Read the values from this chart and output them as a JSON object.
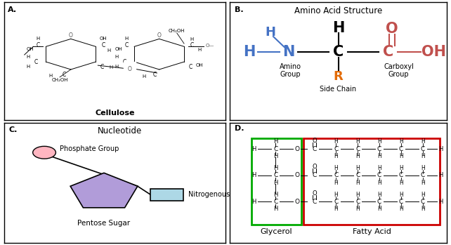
{
  "title_A": "Cellulose",
  "title_B": "Amino Acid Structure",
  "title_C": "Nucleotide",
  "label_amino": "Amino\nGroup",
  "label_carboxyl": "Carboxyl\nGroup",
  "label_side": "Side Chain",
  "label_phosphate": "Phosphate Group",
  "label_pentose": "Pentose Sugar",
  "label_nitrogenous": "Nitrogenous Base",
  "label_glycerol": "Glycerol",
  "label_fatty": "Fatty Acid",
  "color_blue": "#4472C4",
  "color_red": "#C0504D",
  "color_orange": "#E36C09",
  "color_pink": "#FFB6C1",
  "color_purple": "#B19CD9",
  "color_lightblue": "#ADD8E6",
  "color_green_border": "#00AA00",
  "color_red_border": "#CC0000",
  "bg": "#FFFFFF"
}
